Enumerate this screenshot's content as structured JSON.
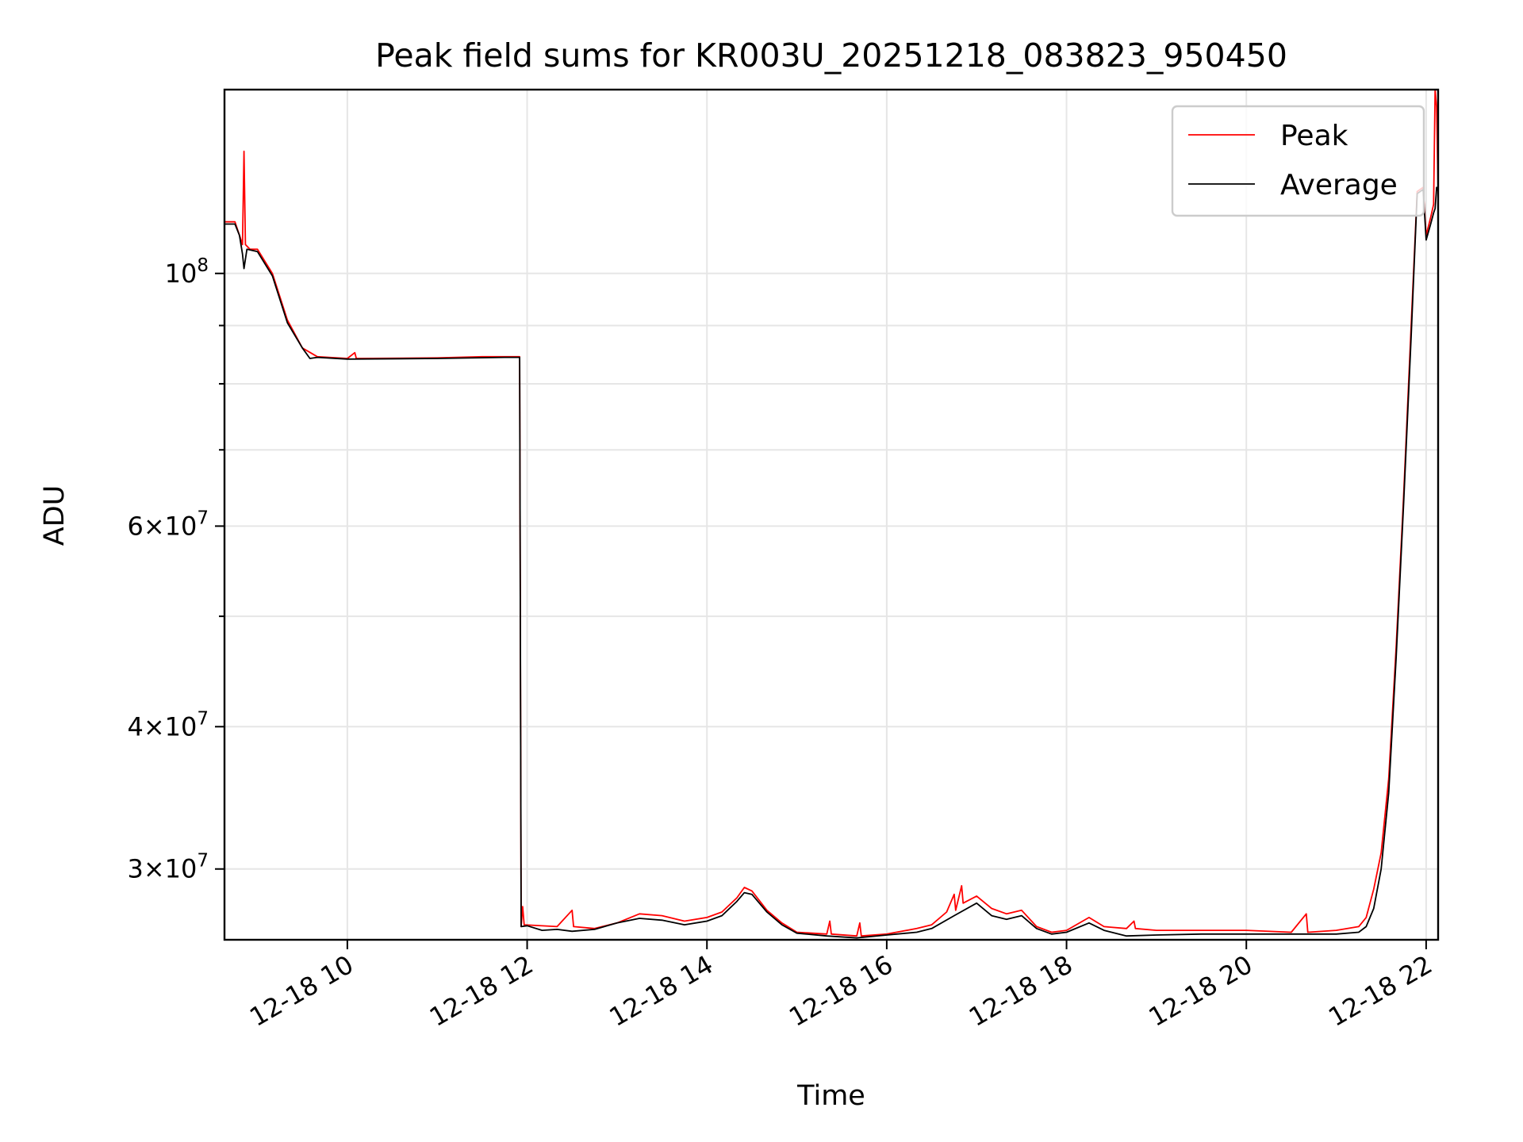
{
  "chart_data": {
    "type": "line",
    "title": "Peak field sums for KR003U_20251218_083823_950450",
    "xlabel": "Time",
    "ylabel": "ADU",
    "yscale": "log",
    "xlim": [
      "2025-12-18 08:38",
      "2025-12-18 22:08"
    ],
    "ylim": [
      26000000,
      145000000
    ],
    "grid": true,
    "legend_position": "top-right",
    "x_ticks": [
      {
        "value": "2025-12-18 10:00",
        "label": "12-18 10"
      },
      {
        "value": "2025-12-18 12:00",
        "label": "12-18 12"
      },
      {
        "value": "2025-12-18 14:00",
        "label": "12-18 14"
      },
      {
        "value": "2025-12-18 16:00",
        "label": "12-18 16"
      },
      {
        "value": "2025-12-18 18:00",
        "label": "12-18 18"
      },
      {
        "value": "2025-12-18 20:00",
        "label": "12-18 20"
      },
      {
        "value": "2025-12-18 22:00",
        "label": "12-18 22"
      }
    ],
    "y_ticks": [
      {
        "value": 30000000,
        "base": "3",
        "exp": "7"
      },
      {
        "value": 40000000,
        "base": "4",
        "exp": "7"
      },
      {
        "value": 60000000,
        "base": "6",
        "exp": "7"
      },
      {
        "value": 100000000,
        "base": "",
        "exp": "8"
      }
    ],
    "y_minor_ticks": [
      50000000,
      70000000,
      80000000,
      90000000
    ],
    "series": [
      {
        "name": "Peak",
        "color": "#ff0000",
        "points": [
          [
            "2025-12-18 08:38",
            111000000
          ],
          [
            "2025-12-18 08:45",
            111000000
          ],
          [
            "2025-12-18 08:48",
            108000000
          ],
          [
            "2025-12-18 08:50",
            106000000
          ],
          [
            "2025-12-18 08:51",
            128000000
          ],
          [
            "2025-12-18 08:52",
            106000000
          ],
          [
            "2025-12-18 08:55",
            105000000
          ],
          [
            "2025-12-18 09:00",
            105000000
          ],
          [
            "2025-12-18 09:10",
            100000000
          ],
          [
            "2025-12-18 09:20",
            91000000
          ],
          [
            "2025-12-18 09:30",
            86000000
          ],
          [
            "2025-12-18 09:40",
            84500000
          ],
          [
            "2025-12-18 10:00",
            84200000
          ],
          [
            "2025-12-18 10:05",
            85200000
          ],
          [
            "2025-12-18 10:06",
            84200000
          ],
          [
            "2025-12-18 11:00",
            84300000
          ],
          [
            "2025-12-18 11:30",
            84500000
          ],
          [
            "2025-12-18 11:45",
            84500000
          ],
          [
            "2025-12-18 11:55",
            84500000
          ],
          [
            "2025-12-18 11:56",
            26700000
          ],
          [
            "2025-12-18 11:57",
            27800000
          ],
          [
            "2025-12-18 11:58",
            26800000
          ],
          [
            "2025-12-18 12:20",
            26700000
          ],
          [
            "2025-12-18 12:30",
            27600000
          ],
          [
            "2025-12-18 12:31",
            26700000
          ],
          [
            "2025-12-18 12:45",
            26600000
          ],
          [
            "2025-12-18 13:00",
            26900000
          ],
          [
            "2025-12-18 13:15",
            27400000
          ],
          [
            "2025-12-18 13:30",
            27300000
          ],
          [
            "2025-12-18 13:45",
            27000000
          ],
          [
            "2025-12-18 14:00",
            27200000
          ],
          [
            "2025-12-18 14:10",
            27500000
          ],
          [
            "2025-12-18 14:20",
            28300000
          ],
          [
            "2025-12-18 14:25",
            28900000
          ],
          [
            "2025-12-18 14:30",
            28700000
          ],
          [
            "2025-12-18 14:40",
            27600000
          ],
          [
            "2025-12-18 14:50",
            26900000
          ],
          [
            "2025-12-18 15:00",
            26400000
          ],
          [
            "2025-12-18 15:20",
            26300000
          ],
          [
            "2025-12-18 15:22",
            27000000
          ],
          [
            "2025-12-18 15:23",
            26300000
          ],
          [
            "2025-12-18 15:40",
            26200000
          ],
          [
            "2025-12-18 15:42",
            26900000
          ],
          [
            "2025-12-18 15:43",
            26200000
          ],
          [
            "2025-12-18 16:00",
            26300000
          ],
          [
            "2025-12-18 16:20",
            26600000
          ],
          [
            "2025-12-18 16:30",
            26800000
          ],
          [
            "2025-12-18 16:40",
            27500000
          ],
          [
            "2025-12-18 16:45",
            28500000
          ],
          [
            "2025-12-18 16:46",
            27600000
          ],
          [
            "2025-12-18 16:50",
            29000000
          ],
          [
            "2025-12-18 16:51",
            28000000
          ],
          [
            "2025-12-18 17:00",
            28400000
          ],
          [
            "2025-12-18 17:10",
            27700000
          ],
          [
            "2025-12-18 17:20",
            27400000
          ],
          [
            "2025-12-18 17:30",
            27600000
          ],
          [
            "2025-12-18 17:40",
            26700000
          ],
          [
            "2025-12-18 17:50",
            26400000
          ],
          [
            "2025-12-18 18:00",
            26500000
          ],
          [
            "2025-12-18 18:15",
            27200000
          ],
          [
            "2025-12-18 18:25",
            26700000
          ],
          [
            "2025-12-18 18:40",
            26600000
          ],
          [
            "2025-12-18 18:45",
            27000000
          ],
          [
            "2025-12-18 18:46",
            26600000
          ],
          [
            "2025-12-18 19:00",
            26500000
          ],
          [
            "2025-12-18 19:30",
            26500000
          ],
          [
            "2025-12-18 20:00",
            26500000
          ],
          [
            "2025-12-18 20:30",
            26400000
          ],
          [
            "2025-12-18 20:40",
            27400000
          ],
          [
            "2025-12-18 20:41",
            26400000
          ],
          [
            "2025-12-18 21:00",
            26500000
          ],
          [
            "2025-12-18 21:15",
            26700000
          ],
          [
            "2025-12-18 21:20",
            27200000
          ],
          [
            "2025-12-18 21:25",
            28800000
          ],
          [
            "2025-12-18 21:30",
            31000000
          ],
          [
            "2025-12-18 21:35",
            36000000
          ],
          [
            "2025-12-18 21:40",
            47000000
          ],
          [
            "2025-12-18 21:45",
            64000000
          ],
          [
            "2025-12-18 21:50",
            90000000
          ],
          [
            "2025-12-18 21:54",
            118000000
          ],
          [
            "2025-12-18 21:58",
            119000000
          ],
          [
            "2025-12-18 22:00",
            108000000
          ],
          [
            "2025-12-18 22:03",
            112000000
          ],
          [
            "2025-12-18 22:05",
            115000000
          ],
          [
            "2025-12-18 22:06",
            145000000
          ],
          [
            "2025-12-18 22:07",
            140000000
          ],
          [
            "2025-12-18 22:08",
            118000000
          ]
        ]
      },
      {
        "name": "Average",
        "color": "#000000",
        "points": [
          [
            "2025-12-18 08:38",
            110500000
          ],
          [
            "2025-12-18 08:45",
            110500000
          ],
          [
            "2025-12-18 08:48",
            108000000
          ],
          [
            "2025-12-18 08:50",
            104000000
          ],
          [
            "2025-12-18 08:51",
            101000000
          ],
          [
            "2025-12-18 08:53",
            105000000
          ],
          [
            "2025-12-18 09:00",
            104500000
          ],
          [
            "2025-12-18 09:10",
            99500000
          ],
          [
            "2025-12-18 09:20",
            90500000
          ],
          [
            "2025-12-18 09:30",
            86000000
          ],
          [
            "2025-12-18 09:35",
            84200000
          ],
          [
            "2025-12-18 09:40",
            84400000
          ],
          [
            "2025-12-18 10:00",
            84100000
          ],
          [
            "2025-12-18 11:00",
            84200000
          ],
          [
            "2025-12-18 11:45",
            84400000
          ],
          [
            "2025-12-18 11:55",
            84400000
          ],
          [
            "2025-12-18 11:56",
            26700000
          ],
          [
            "2025-12-18 12:00",
            26750000
          ],
          [
            "2025-12-18 12:10",
            26500000
          ],
          [
            "2025-12-18 12:20",
            26550000
          ],
          [
            "2025-12-18 12:30",
            26450000
          ],
          [
            "2025-12-18 12:45",
            26550000
          ],
          [
            "2025-12-18 13:00",
            26900000
          ],
          [
            "2025-12-18 13:15",
            27150000
          ],
          [
            "2025-12-18 13:30",
            27050000
          ],
          [
            "2025-12-18 13:45",
            26800000
          ],
          [
            "2025-12-18 14:00",
            27000000
          ],
          [
            "2025-12-18 14:10",
            27300000
          ],
          [
            "2025-12-18 14:20",
            28100000
          ],
          [
            "2025-12-18 14:25",
            28600000
          ],
          [
            "2025-12-18 14:30",
            28500000
          ],
          [
            "2025-12-18 14:40",
            27500000
          ],
          [
            "2025-12-18 14:50",
            26800000
          ],
          [
            "2025-12-18 15:00",
            26350000
          ],
          [
            "2025-12-18 15:20",
            26200000
          ],
          [
            "2025-12-18 15:40",
            26100000
          ],
          [
            "2025-12-18 16:00",
            26250000
          ],
          [
            "2025-12-18 16:20",
            26400000
          ],
          [
            "2025-12-18 16:30",
            26600000
          ],
          [
            "2025-12-18 16:45",
            27300000
          ],
          [
            "2025-12-18 17:00",
            28000000
          ],
          [
            "2025-12-18 17:10",
            27300000
          ],
          [
            "2025-12-18 17:20",
            27100000
          ],
          [
            "2025-12-18 17:30",
            27300000
          ],
          [
            "2025-12-18 17:40",
            26600000
          ],
          [
            "2025-12-18 17:50",
            26300000
          ],
          [
            "2025-12-18 18:00",
            26400000
          ],
          [
            "2025-12-18 18:15",
            26900000
          ],
          [
            "2025-12-18 18:25",
            26500000
          ],
          [
            "2025-12-18 18:40",
            26200000
          ],
          [
            "2025-12-18 19:00",
            26250000
          ],
          [
            "2025-12-18 19:30",
            26300000
          ],
          [
            "2025-12-18 20:00",
            26300000
          ],
          [
            "2025-12-18 20:30",
            26300000
          ],
          [
            "2025-12-18 21:00",
            26300000
          ],
          [
            "2025-12-18 21:15",
            26400000
          ],
          [
            "2025-12-18 21:20",
            26700000
          ],
          [
            "2025-12-18 21:25",
            27700000
          ],
          [
            "2025-12-18 21:30",
            30000000
          ],
          [
            "2025-12-18 21:35",
            35000000
          ],
          [
            "2025-12-18 21:40",
            46000000
          ],
          [
            "2025-12-18 21:45",
            63000000
          ],
          [
            "2025-12-18 21:50",
            88000000
          ],
          [
            "2025-12-18 21:54",
            117500000
          ],
          [
            "2025-12-18 21:58",
            118500000
          ],
          [
            "2025-12-18 22:00",
            107000000
          ],
          [
            "2025-12-18 22:03",
            110500000
          ],
          [
            "2025-12-18 22:05",
            113000000
          ],
          [
            "2025-12-18 22:06",
            114000000
          ],
          [
            "2025-12-18 22:07",
            119000000
          ],
          [
            "2025-12-18 22:08",
            118000000
          ]
        ]
      }
    ]
  }
}
